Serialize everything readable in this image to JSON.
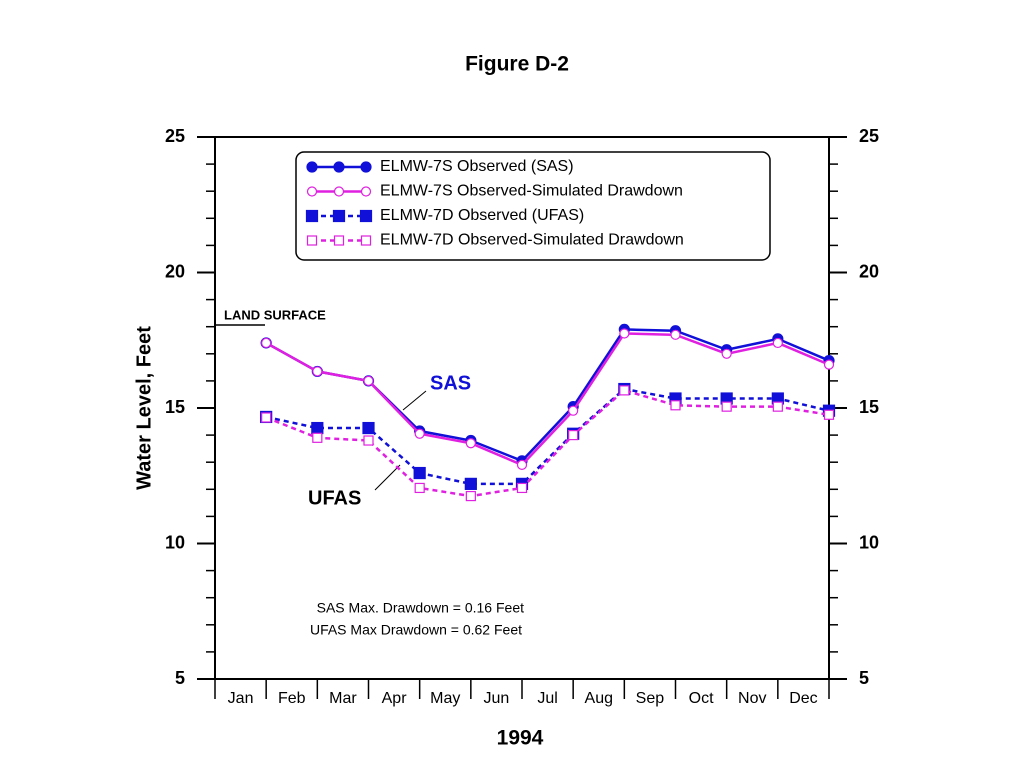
{
  "chart_data": {
    "type": "line",
    "title": "Figure D-2",
    "xlabel": "1994",
    "ylabel": "Water Level, Feet",
    "categories": [
      "Jan",
      "Feb",
      "Mar",
      "Apr",
      "May",
      "Jun",
      "Jul",
      "Aug",
      "Sep",
      "Oct",
      "Nov",
      "Dec"
    ],
    "series": [
      {
        "name": "ELMW-7S Observed (SAS)",
        "color": "#1010d8",
        "dash": false,
        "marker": "filled-circle",
        "values": [
          17.4,
          16.35,
          16.0,
          14.15,
          13.8,
          13.05,
          15.05,
          17.9,
          17.85,
          17.15,
          17.55,
          16.75
        ]
      },
      {
        "name": "ELMW-7S Observed-Simulated Drawdown",
        "color": "#e020e0",
        "dash": false,
        "marker": "open-circle",
        "values": [
          17.4,
          16.35,
          16.0,
          14.05,
          13.7,
          12.9,
          14.9,
          17.75,
          17.7,
          17.0,
          17.4,
          16.6
        ]
      },
      {
        "name": "ELMW-7D Observed (UFAS)",
        "color": "#1010d8",
        "dash": true,
        "marker": "filled-square",
        "values": [
          14.67,
          14.26,
          14.26,
          12.6,
          12.2,
          12.2,
          14.05,
          15.7,
          15.35,
          15.35,
          15.35,
          14.9
        ]
      },
      {
        "name": "ELMW-7D Observed-Simulated Drawdown",
        "color": "#e020e0",
        "dash": true,
        "marker": "open-square",
        "values": [
          14.65,
          13.9,
          13.8,
          12.05,
          11.75,
          12.05,
          14.0,
          15.65,
          15.1,
          15.05,
          15.05,
          14.75
        ]
      }
    ],
    "ylim": [
      5,
      25
    ],
    "yticks": [
      5,
      10,
      15,
      20,
      25
    ],
    "yminor_ticks": [
      6,
      7,
      8,
      9,
      11,
      12,
      13,
      14,
      16,
      17,
      18,
      19,
      21,
      22,
      23,
      24
    ],
    "y2lim": [
      5,
      25
    ],
    "y2ticks": [
      5,
      10,
      15,
      20,
      25
    ],
    "annotations": {
      "land_surface": "LAND SURFACE",
      "sas": "SAS",
      "ufas": "UFAS",
      "note1": "SAS Max. Drawdown = 0.16 Feet",
      "note2": "UFAS Max Drawdown = 0.62 Feet"
    }
  }
}
